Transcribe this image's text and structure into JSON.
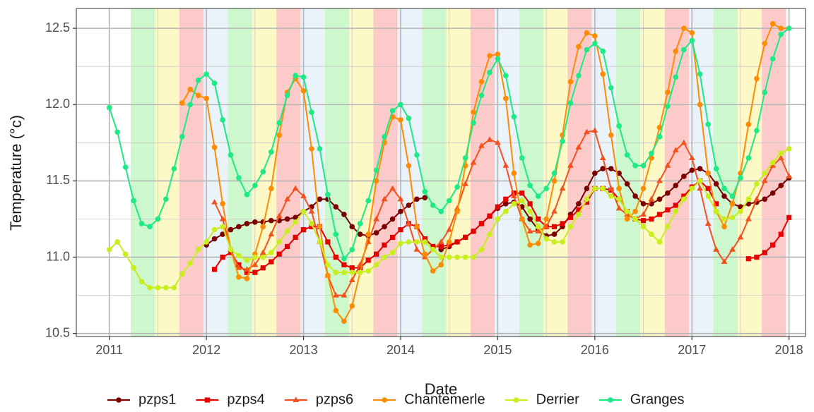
{
  "chart_data": {
    "type": "line",
    "x_label": "Date",
    "y_label": "Temperature (°c)",
    "xlim": [
      2010.66,
      2018.17
    ],
    "ylim": [
      10.48,
      12.63
    ],
    "xticks": [
      2011,
      2012,
      2013,
      2014,
      2015,
      2016,
      2017,
      2018
    ],
    "yticks": [
      10.5,
      {
        "value": 11,
        "label": "11.0"
      },
      11.5,
      {
        "value": 12,
        "label": "12.0"
      },
      12.5
    ],
    "grid": true,
    "legend": "bottom",
    "season_bands": {
      "edges": [
        2011.22,
        2011.47,
        2011.72,
        2011.97,
        2012.22,
        2012.47,
        2012.72,
        2012.97,
        2013.22,
        2013.47,
        2013.72,
        2013.97,
        2014.22,
        2014.47,
        2014.72,
        2014.97,
        2015.22,
        2015.47,
        2015.72,
        2015.97,
        2016.22,
        2016.47,
        2016.72,
        2016.97,
        2017.22,
        2017.47,
        2017.72,
        2017.97
      ],
      "colors": [
        "#cdf7cd",
        "#fcf9c6",
        "#fdcaca",
        "#eaf3fa",
        "#cdf7cd",
        "#fcf9c6",
        "#fdcaca",
        "#eaf3fa",
        "#cdf7cd",
        "#fcf9c6",
        "#fdcaca",
        "#eaf3fa",
        "#cdf7cd",
        "#fcf9c6",
        "#fdcaca",
        "#eaf3fa",
        "#cdf7cd",
        "#fcf9c6",
        "#fdcaca",
        "#eaf3fa",
        "#cdf7cd",
        "#fcf9c6",
        "#fdcaca",
        "#eaf3fa",
        "#cdf7cd",
        "#fcf9c6",
        "#fdcaca"
      ]
    },
    "x": [
      2011,
      2011.083,
      2011.167,
      2011.25,
      2011.333,
      2011.417,
      2011.5,
      2011.583,
      2011.667,
      2011.75,
      2011.833,
      2011.917,
      2012,
      2012.083,
      2012.167,
      2012.25,
      2012.333,
      2012.417,
      2012.5,
      2012.583,
      2012.667,
      2012.75,
      2012.833,
      2012.917,
      2013,
      2013.083,
      2013.167,
      2013.25,
      2013.333,
      2013.417,
      2013.5,
      2013.583,
      2013.667,
      2013.75,
      2013.833,
      2013.917,
      2014,
      2014.083,
      2014.167,
      2014.25,
      2014.333,
      2014.417,
      2014.5,
      2014.583,
      2014.667,
      2014.75,
      2014.833,
      2014.917,
      2015,
      2015.083,
      2015.167,
      2015.25,
      2015.333,
      2015.417,
      2015.5,
      2015.583,
      2015.667,
      2015.75,
      2015.833,
      2015.917,
      2016,
      2016.083,
      2016.167,
      2016.25,
      2016.333,
      2016.417,
      2016.5,
      2016.583,
      2016.667,
      2016.75,
      2016.833,
      2016.917,
      2017,
      2017.083,
      2017.167,
      2017.25,
      2017.333,
      2017.417,
      2017.5,
      2017.583,
      2017.667,
      2017.75,
      2017.833,
      2017.917,
      2018
    ],
    "series": [
      {
        "name": "pzps1",
        "color": "#7b0000",
        "marker": "circle",
        "values": [
          null,
          null,
          null,
          null,
          null,
          null,
          null,
          null,
          null,
          null,
          null,
          null,
          11.08,
          11.12,
          11.15,
          11.18,
          11.2,
          11.22,
          11.23,
          11.23,
          11.24,
          11.24,
          11.25,
          11.26,
          11.3,
          11.33,
          11.38,
          11.38,
          11.33,
          11.28,
          11.2,
          11.15,
          11.14,
          11.16,
          11.2,
          11.25,
          11.3,
          11.34,
          11.38,
          11.39,
          null,
          11.05,
          11.07,
          11.1,
          11.13,
          11.17,
          11.22,
          11.27,
          11.32,
          11.35,
          11.36,
          11.33,
          11.25,
          11.18,
          11.14,
          11.15,
          11.2,
          11.28,
          11.35,
          11.45,
          11.55,
          11.58,
          11.58,
          11.55,
          11.48,
          11.4,
          11.35,
          11.35,
          11.38,
          11.42,
          11.47,
          11.53,
          11.57,
          11.58,
          11.55,
          11.48,
          11.4,
          11.35,
          11.33,
          11.35,
          11.36,
          11.38,
          11.42,
          11.47,
          11.52
        ]
      },
      {
        "name": "pzps4",
        "color": "#e60000",
        "marker": "square",
        "values": [
          null,
          null,
          null,
          null,
          null,
          null,
          null,
          null,
          null,
          null,
          null,
          null,
          null,
          10.92,
          11,
          11.03,
          10.95,
          10.9,
          10.9,
          10.93,
          10.97,
          11.02,
          11.07,
          11.13,
          11.18,
          11.2,
          11.2,
          11.1,
          11,
          10.95,
          10.93,
          10.93,
          10.98,
          11.02,
          11.08,
          11.13,
          11.18,
          11.22,
          11.2,
          11.12,
          11.07,
          11.07,
          11.08,
          11.1,
          11.13,
          11.17,
          11.22,
          11.27,
          11.33,
          11.38,
          11.42,
          11.42,
          11.35,
          11.25,
          11.2,
          11.2,
          11.22,
          11.26,
          11.31,
          11.36,
          11.45,
          11.45,
          11.44,
          11.38,
          11.3,
          11.25,
          11.24,
          11.25,
          11.28,
          11.31,
          11.34,
          11.4,
          11.46,
          11.5,
          11.45,
          11.35,
          null,
          null,
          null,
          10.99,
          11,
          11.03,
          11.08,
          11.15,
          11.26
        ]
      },
      {
        "name": "pzps6",
        "color": "#f4511e",
        "marker": "triangle",
        "values": [
          null,
          null,
          null,
          null,
          null,
          null,
          null,
          null,
          null,
          null,
          null,
          null,
          null,
          11.36,
          11.25,
          11.05,
          10.93,
          10.92,
          10.95,
          11.03,
          11.15,
          11.27,
          11.38,
          11.45,
          11.4,
          11.3,
          11.1,
          10.88,
          10.75,
          10.75,
          10.85,
          10.95,
          11.1,
          11.25,
          11.38,
          11.45,
          11.38,
          11.22,
          11.05,
          11,
          11.05,
          11.1,
          11.18,
          11.32,
          11.48,
          11.62,
          11.73,
          11.77,
          11.75,
          11.6,
          11.4,
          11.25,
          11.17,
          11.17,
          11.2,
          11.3,
          11.45,
          11.6,
          11.72,
          11.82,
          11.83,
          11.65,
          11.45,
          11.32,
          11.28,
          11.25,
          11.28,
          11.38,
          11.5,
          11.6,
          11.7,
          11.75,
          11.65,
          11.45,
          11.22,
          11.05,
          10.97,
          11.05,
          11.13,
          11.25,
          11.38,
          11.5,
          11.6,
          11.65,
          11.53
        ]
      },
      {
        "name": "Chantemerle",
        "color": "#ff8c00",
        "marker": "circle",
        "values": [
          null,
          null,
          null,
          null,
          null,
          null,
          null,
          null,
          null,
          12.01,
          12.1,
          12.06,
          12.04,
          11.72,
          11.35,
          11.05,
          10.87,
          10.86,
          11.02,
          11.2,
          11.45,
          11.8,
          12.08,
          12.17,
          12.09,
          11.71,
          11.2,
          10.88,
          10.65,
          10.58,
          10.68,
          10.9,
          11.15,
          11.5,
          11.75,
          11.92,
          11.9,
          11.6,
          11.2,
          11.02,
          10.91,
          10.95,
          11.1,
          11.3,
          11.6,
          11.95,
          12.15,
          12.32,
          12.33,
          12.04,
          11.55,
          11.25,
          11.08,
          11.09,
          11.25,
          11.5,
          11.8,
          12.15,
          12.38,
          12.47,
          12.45,
          12.2,
          11.8,
          11.45,
          11.25,
          11.3,
          11.45,
          11.65,
          11.85,
          12.08,
          12.35,
          12.5,
          12.47,
          12,
          11.55,
          11.3,
          11.2,
          11.35,
          11.55,
          11.87,
          12.17,
          12.4,
          12.53,
          12.5,
          12.5
        ]
      },
      {
        "name": "Derrier",
        "color": "#c8ee1e",
        "marker": "circle",
        "values": [
          11.05,
          11.1,
          11.02,
          10.93,
          10.84,
          10.8,
          10.8,
          10.8,
          10.8,
          10.89,
          10.96,
          11.05,
          11.1,
          11.18,
          11.2,
          11.05,
          11.01,
          10.98,
          11,
          11,
          11.03,
          11.1,
          11.17,
          11.23,
          11.3,
          11.22,
          11.1,
          10.95,
          10.9,
          10.9,
          10.9,
          10.9,
          10.91,
          10.95,
          11,
          11.03,
          11.09,
          11.1,
          11.1,
          11.1,
          11.05,
          11,
          11,
          11,
          11,
          11,
          11.05,
          11.15,
          11.25,
          11.3,
          11.35,
          11.37,
          11.3,
          11.2,
          11.12,
          11.1,
          11.1,
          11.2,
          11.28,
          11.38,
          11.45,
          11.45,
          11.4,
          11.38,
          11.3,
          11.25,
          11.2,
          11.15,
          11.1,
          11.2,
          11.3,
          11.38,
          11.45,
          11.5,
          11.4,
          11.3,
          11.25,
          11.26,
          11.3,
          11.38,
          11.48,
          11.55,
          11.62,
          11.68,
          11.71
        ]
      },
      {
        "name": "Granges",
        "color": "#1de985",
        "marker": "circle",
        "values": [
          11.98,
          11.82,
          11.59,
          11.37,
          11.22,
          11.2,
          11.25,
          11.38,
          11.58,
          11.79,
          12,
          12.16,
          12.2,
          12.14,
          11.9,
          11.67,
          11.52,
          11.41,
          11.47,
          11.56,
          11.69,
          11.88,
          12.06,
          12.19,
          12.18,
          11.95,
          11.71,
          11.41,
          11.15,
          10.99,
          11.05,
          11.22,
          11.37,
          11.57,
          11.79,
          11.96,
          12,
          11.91,
          11.67,
          11.43,
          11.34,
          11.3,
          11.37,
          11.46,
          11.65,
          11.88,
          12.06,
          12.21,
          12.3,
          12.19,
          11.92,
          11.65,
          11.47,
          11.4,
          11.45,
          11.55,
          11.76,
          12.01,
          12.19,
          12.36,
          12.4,
          12.35,
          12.11,
          11.86,
          11.67,
          11.6,
          11.6,
          11.68,
          11.79,
          11.99,
          12.18,
          12.36,
          12.42,
          12.2,
          11.87,
          11.58,
          11.45,
          11.4,
          11.52,
          11.65,
          11.83,
          12.08,
          12.3,
          12.46,
          12.5
        ]
      }
    ]
  }
}
